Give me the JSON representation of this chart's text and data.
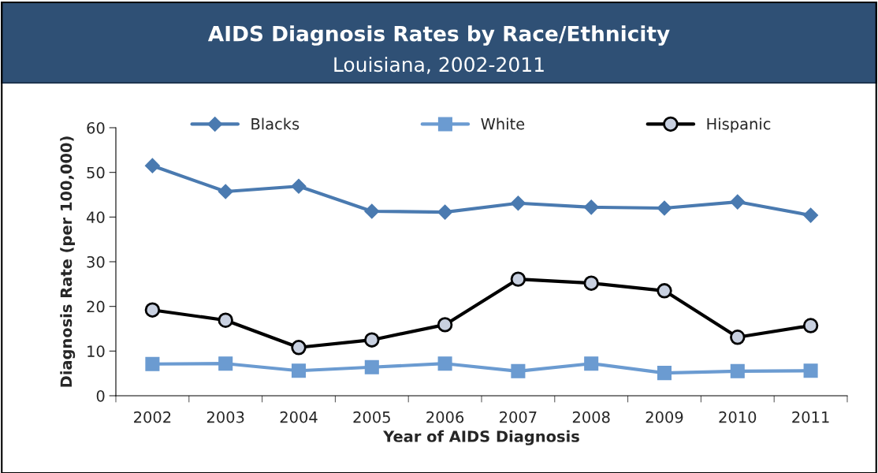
{
  "chart_data": {
    "type": "line",
    "title": "AIDS Diagnosis Rates by Race/Ethnicity",
    "subtitle": "Louisiana, 2002-2011",
    "xlabel": "Year of AIDS Diagnosis",
    "ylabel": "Diagnosis Rate (per 100,000)",
    "categories": [
      "2002",
      "2003",
      "2004",
      "2005",
      "2006",
      "2007",
      "2008",
      "2009",
      "2010",
      "2011"
    ],
    "series": [
      {
        "name": "Blacks",
        "color": "#4a7ab0",
        "marker": "diamond",
        "values": [
          51.5,
          45.7,
          46.9,
          41.3,
          41.1,
          43.1,
          42.2,
          42.0,
          43.4,
          40.4
        ]
      },
      {
        "name": "White",
        "color": "#6b9bd1",
        "marker": "square",
        "values": [
          7.1,
          7.2,
          5.6,
          6.4,
          7.2,
          5.5,
          7.2,
          5.1,
          5.5,
          5.6
        ]
      },
      {
        "name": "Hispanic",
        "color": "#000000",
        "marker": "circle",
        "values": [
          19.2,
          16.9,
          10.8,
          12.5,
          15.9,
          26.1,
          25.2,
          23.5,
          13.1,
          15.7
        ]
      }
    ],
    "ylim": [
      0,
      60
    ],
    "yticks": [
      0,
      10,
      20,
      30,
      40,
      50,
      60
    ],
    "grid": false,
    "legend": "top"
  }
}
